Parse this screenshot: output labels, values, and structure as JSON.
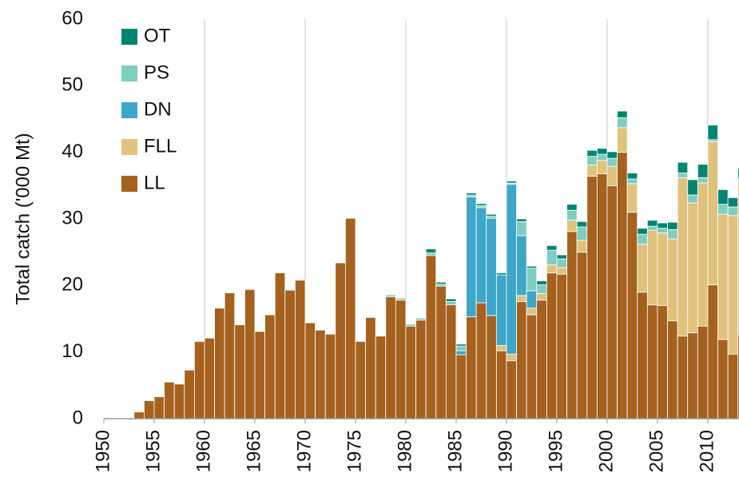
{
  "chart_data": {
    "type": "stacked-bar",
    "y_label": "Total catch ('000 Mt)",
    "x": [
      1950,
      1951,
      1952,
      1953,
      1954,
      1955,
      1956,
      1957,
      1958,
      1959,
      1960,
      1961,
      1962,
      1963,
      1964,
      1965,
      1966,
      1967,
      1968,
      1969,
      1970,
      1971,
      1972,
      1973,
      1974,
      1975,
      1976,
      1977,
      1978,
      1979,
      1980,
      1981,
      1982,
      1983,
      1984,
      1985,
      1986,
      1987,
      1988,
      1989,
      1990,
      1991,
      1992,
      1993,
      1994,
      1995,
      1996,
      1997,
      1998,
      1999,
      2000,
      2001,
      2002,
      2003,
      2004,
      2005,
      2006,
      2007,
      2008,
      2009,
      2010,
      2011,
      2012,
      2013
    ],
    "series": [
      {
        "name": "LL",
        "color": "#a5621f",
        "values": [
          0,
          0,
          0,
          1.0,
          2.7,
          3.3,
          5.5,
          5.2,
          7.3,
          11.6,
          12.1,
          16.6,
          18.9,
          14.1,
          19.4,
          13.1,
          15.6,
          21.9,
          19.3,
          20.8,
          14.4,
          13.3,
          12.7,
          23.4,
          30.1,
          11.6,
          15.2,
          12.4,
          18.3,
          17.8,
          13.9,
          14.8,
          24.5,
          19.9,
          17.1,
          9.6,
          15.3,
          17.4,
          15.5,
          10.2,
          8.7,
          17.6,
          15.6,
          17.8,
          21.9,
          21.7,
          28.1,
          25.0,
          36.4,
          36.8,
          35.0,
          40.0,
          31.0,
          19.0,
          17.1,
          17.0,
          14.7,
          12.4,
          12.9,
          13.9,
          20.1,
          11.9,
          9.7,
          12.6
        ]
      },
      {
        "name": "FLL",
        "color": "#dfc27d",
        "values": [
          0,
          0,
          0,
          0,
          0,
          0,
          0,
          0,
          0,
          0,
          0,
          0,
          0,
          0,
          0,
          0,
          0,
          0,
          0,
          0,
          0,
          0,
          0,
          0,
          0,
          0,
          0,
          0,
          0,
          0,
          0,
          0,
          0,
          0,
          0,
          0,
          0,
          0,
          0,
          0.8,
          1.0,
          0.9,
          1.0,
          1.0,
          1.2,
          1.0,
          1.7,
          1.8,
          1.7,
          2.0,
          2.9,
          3.7,
          4.3,
          7.2,
          11.2,
          10.9,
          12.3,
          23.8,
          19.5,
          21.5,
          21.5,
          18.8,
          20.8,
          23.0
        ]
      },
      {
        "name": "DN",
        "color": "#3ea6c9",
        "values": [
          0,
          0,
          0,
          0,
          0,
          0,
          0,
          0,
          0,
          0,
          0,
          0,
          0,
          0,
          0,
          0,
          0,
          0,
          0,
          0,
          0,
          0,
          0,
          0,
          0,
          0,
          0,
          0,
          0,
          0,
          0,
          0,
          0,
          0,
          0,
          0.6,
          18.0,
          14.3,
          14.6,
          10.6,
          25.5,
          9.0,
          2.6,
          0,
          0,
          0,
          0,
          0,
          0,
          0,
          0,
          0,
          0,
          0,
          0,
          0,
          0,
          0,
          0,
          0,
          0,
          0,
          0,
          0
        ]
      },
      {
        "name": "PS",
        "color": "#80cdc1",
        "values": [
          0,
          0,
          0,
          0,
          0,
          0,
          0,
          0,
          0,
          0,
          0,
          0,
          0,
          0,
          0,
          0,
          0,
          0,
          0,
          0,
          0,
          0,
          0,
          0,
          0,
          0,
          0,
          0,
          0.3,
          0.3,
          0.3,
          0.3,
          0.4,
          0.3,
          0.5,
          0.7,
          0.3,
          0.3,
          0.3,
          0,
          0.2,
          2.1,
          3.4,
          1.3,
          2.2,
          1.3,
          1.5,
          2.0,
          1.3,
          0.9,
          1.2,
          1.5,
          0.7,
          1.5,
          0.6,
          0.7,
          1.4,
          0.7,
          1.2,
          0.8,
          0.3,
          1.5,
          1.3,
          0.5
        ]
      },
      {
        "name": "OT",
        "color": "#018571",
        "values": [
          0,
          0,
          0,
          0,
          0,
          0,
          0,
          0,
          0,
          0,
          0,
          0,
          0,
          0,
          0,
          0,
          0,
          0,
          0,
          0,
          0,
          0,
          0,
          0,
          0,
          0,
          0,
          0,
          0,
          0,
          0,
          0,
          0.6,
          0.3,
          0.4,
          0.3,
          0.3,
          0.3,
          0.3,
          0.3,
          0.3,
          0.4,
          0.3,
          0.6,
          0.7,
          0.6,
          0.9,
          0.8,
          0.9,
          0.9,
          1.0,
          1.0,
          0.9,
          0.9,
          0.9,
          0.8,
          1.1,
          1.6,
          2.3,
          2.0,
          2.2,
          2.2,
          1.4,
          1.5
        ]
      }
    ],
    "xlim": [
      1950,
      2013.1
    ],
    "xticks": [
      1950,
      1955,
      1960,
      1965,
      1970,
      1975,
      1980,
      1985,
      1990,
      1995,
      2000,
      2005,
      2010
    ],
    "ylim": [
      0,
      60
    ],
    "yticks": [
      0,
      10,
      20,
      30,
      40,
      50,
      60
    ],
    "grid": true,
    "legend": "top-left"
  }
}
